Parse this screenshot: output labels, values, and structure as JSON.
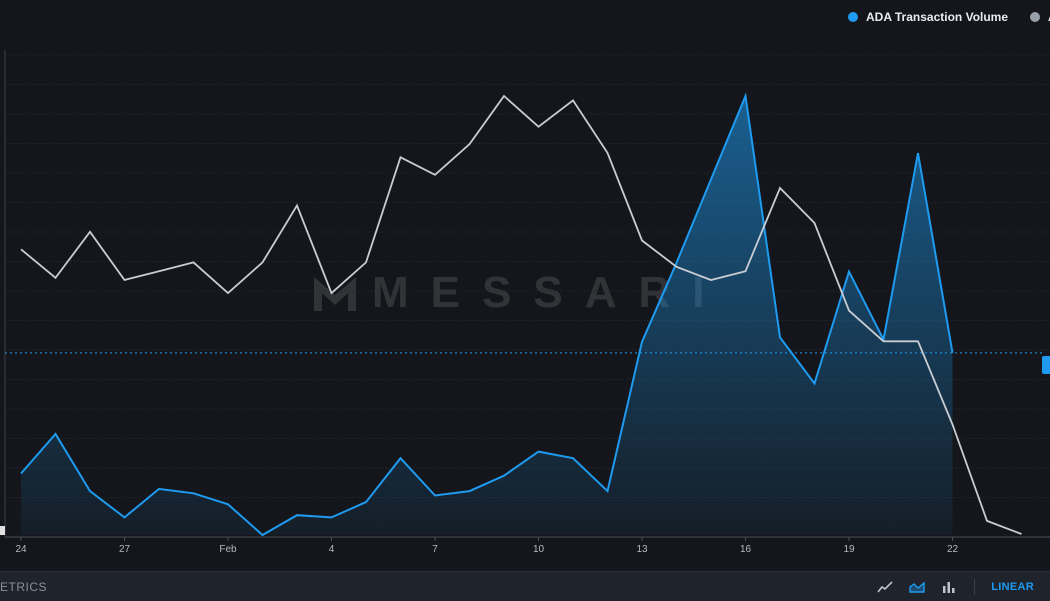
{
  "legend": {
    "items": [
      {
        "label": "ADA Transaction Volume",
        "color": "#1e9bf0"
      },
      {
        "label": "A",
        "color": "#9aa0aa"
      }
    ]
  },
  "watermark": {
    "text": "MESSARI"
  },
  "footer": {
    "brand": "ETRICS",
    "scale_label": "LINEAR",
    "tools": [
      "line-chart-icon",
      "area-chart-icon",
      "bar-chart-icon"
    ]
  },
  "chart_data": {
    "type": "line",
    "x": [
      "Jan 24",
      "Jan 25",
      "Jan 26",
      "Jan 27",
      "Jan 28",
      "Jan 29",
      "Jan 30",
      "Jan 31",
      "Feb 1",
      "Feb 2",
      "Feb 3",
      "Feb 4",
      "Feb 5",
      "Feb 6",
      "Feb 7",
      "Feb 8",
      "Feb 9",
      "Feb 10",
      "Feb 11",
      "Feb 12",
      "Feb 13",
      "Feb 14",
      "Feb 15",
      "Feb 16",
      "Feb 17",
      "Feb 18",
      "Feb 19",
      "Feb 20",
      "Feb 21",
      "Feb 22"
    ],
    "tick_labels": [
      "24",
      "27",
      "Feb",
      "4",
      "7",
      "10",
      "13",
      "16",
      "19",
      "22"
    ],
    "series": [
      {
        "name": "ADA Transaction Volume",
        "color": "#1e9bf0",
        "style": "area",
        "values": [
          0.14,
          0.23,
          0.1,
          0.04,
          0.105,
          0.095,
          0.07,
          0.0,
          0.045,
          0.04,
          0.075,
          0.175,
          0.09,
          0.1,
          0.135,
          0.19,
          0.175,
          0.1,
          0.44,
          0.62,
          0.81,
          1.0,
          0.45,
          0.345,
          0.6,
          0.445,
          0.87,
          0.415,
          null,
          null
        ]
      },
      {
        "name": "A",
        "color": "#c8ccd3",
        "style": "line",
        "values": [
          0.65,
          0.585,
          0.69,
          0.58,
          0.6,
          0.62,
          0.55,
          0.62,
          0.75,
          0.55,
          0.62,
          0.86,
          0.82,
          0.89,
          1.0,
          0.93,
          0.99,
          0.87,
          0.67,
          0.61,
          0.58,
          0.6,
          0.79,
          0.71,
          0.51,
          0.44,
          0.44,
          0.25,
          0.03,
          0.0
        ]
      }
    ],
    "grid": true,
    "legend_position": "top-right",
    "scale": "linear",
    "reference_line": 0.415
  }
}
